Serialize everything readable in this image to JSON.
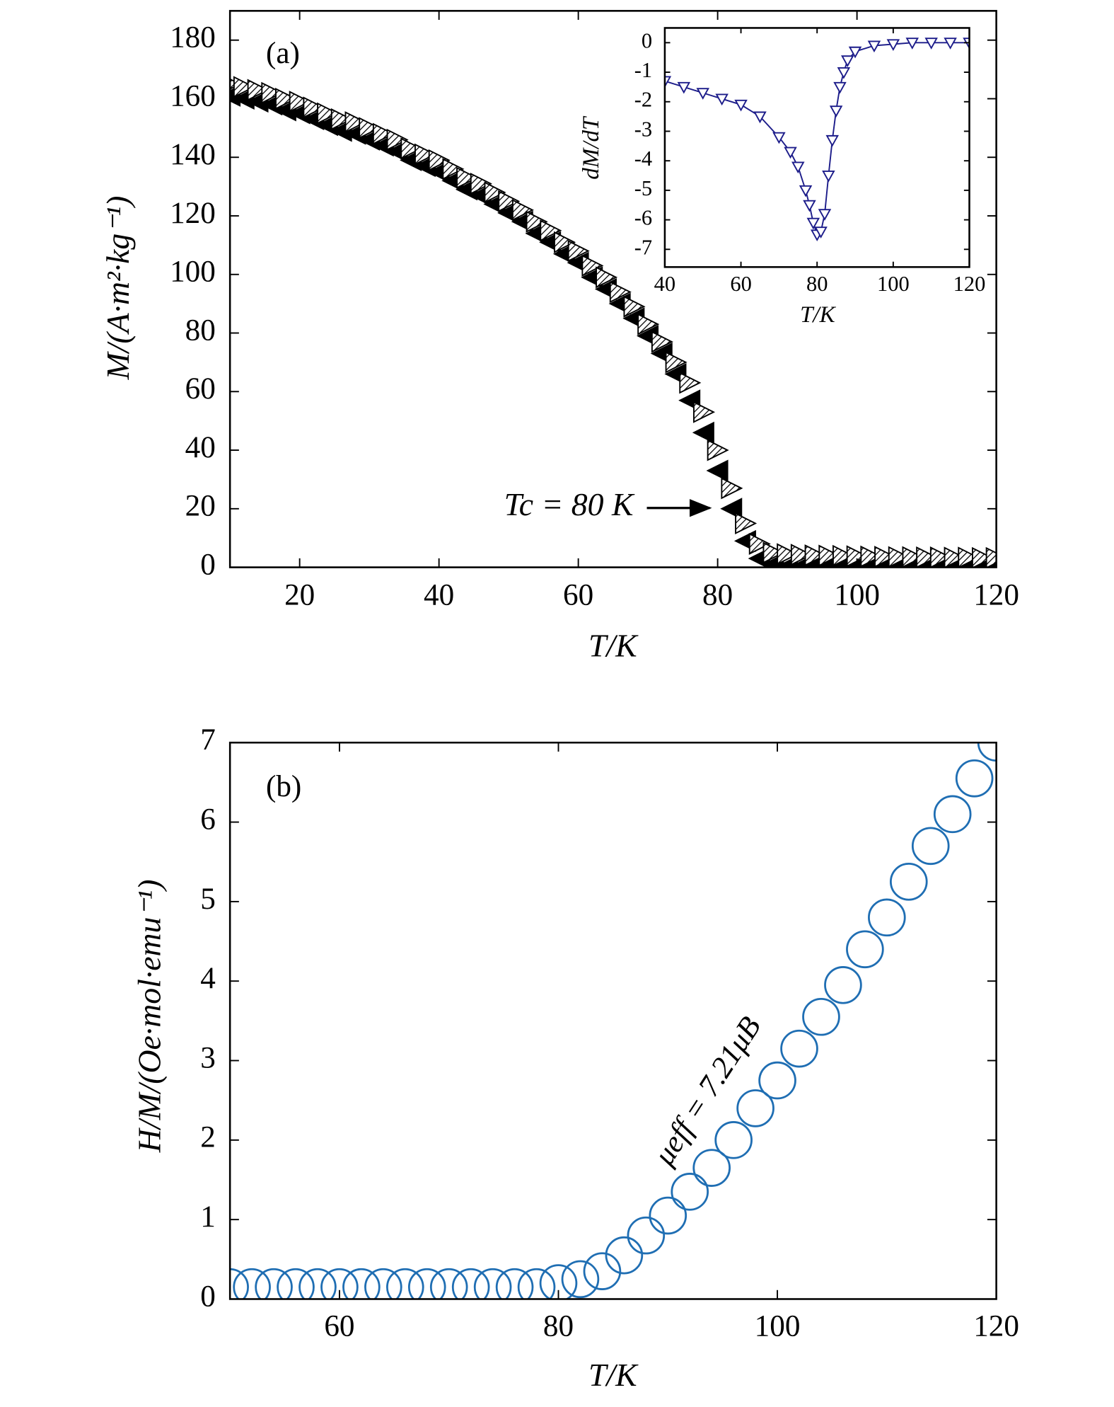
{
  "chart_data": [
    {
      "type": "scatter",
      "label": "(a)",
      "xlabel": "T/K",
      "ylabel": "M/(A·m²·kg⁻¹)",
      "annotation": "Tc = 80 K",
      "xlim": [
        10,
        120
      ],
      "xticks": [
        20,
        40,
        60,
        80,
        100,
        120
      ],
      "ylim": [
        0,
        190
      ],
      "yticks": [
        0,
        20,
        40,
        60,
        80,
        100,
        120,
        140,
        160,
        180
      ],
      "x": [
        10,
        12,
        14,
        16,
        18,
        20,
        22,
        24,
        26,
        28,
        30,
        32,
        34,
        36,
        38,
        40,
        42,
        44,
        46,
        48,
        50,
        52,
        54,
        56,
        58,
        60,
        62,
        64,
        66,
        68,
        70,
        72,
        74,
        76,
        78,
        80,
        82,
        84,
        86,
        88,
        90,
        92,
        94,
        96,
        98,
        100,
        102,
        104,
        106,
        108,
        110,
        112,
        114,
        116,
        118,
        120
      ],
      "series": [
        {
          "color": "#000000",
          "marker": "triangle-left",
          "values": [
            161,
            160,
            159,
            158,
            156,
            155,
            153,
            151,
            149,
            148,
            146,
            144,
            142,
            139,
            137,
            135,
            132,
            129,
            127,
            124,
            121,
            118,
            114,
            111,
            107,
            104,
            99,
            95,
            90,
            85,
            79,
            73,
            66,
            57,
            46,
            33,
            20,
            9,
            3,
            1,
            0.3,
            0.3,
            0.3,
            0.3,
            0.3,
            0.3,
            0.3,
            0.3,
            0.3,
            0.3,
            0.3,
            0.3,
            0.3,
            0.3,
            0.3,
            0.3
          ]
        },
        {
          "color": "#000000",
          "marker": "triangle-right-hatched",
          "values": [
            165,
            164,
            163,
            162,
            160,
            159,
            157,
            155,
            153,
            152,
            150,
            148,
            146,
            143,
            141,
            139,
            136,
            133,
            131,
            128,
            125,
            122,
            118,
            115,
            111,
            108,
            103,
            99,
            94,
            89,
            83,
            77,
            70,
            63,
            53,
            40,
            27,
            15,
            8,
            5,
            4.5,
            4.3,
            4.1,
            4,
            3.9,
            3.8,
            3.7,
            3.6,
            3.5,
            3.5,
            3.4,
            3.4,
            3.3,
            3.3,
            3.2,
            3.2
          ]
        }
      ]
    },
    {
      "type": "scatter",
      "xlabel": "T/K",
      "ylabel": "dM/dT",
      "xlim": [
        40,
        120
      ],
      "xticks": [
        40,
        60,
        80,
        100,
        120
      ],
      "ylim": [
        -7.6,
        0.5
      ],
      "yticks": [
        0,
        -1,
        -2,
        -3,
        -4,
        -5,
        -6,
        -7
      ],
      "x": [
        40,
        45,
        50,
        55,
        60,
        65,
        70,
        73,
        75,
        77,
        78,
        79,
        80,
        81,
        82,
        83,
        84,
        85,
        86,
        87,
        88,
        90,
        95,
        100,
        105,
        110,
        115,
        120
      ],
      "series": [
        {
          "color": "#1c1c8a",
          "marker": "triangle-down",
          "line": true,
          "values": [
            -1.3,
            -1.5,
            -1.7,
            -1.9,
            -2.1,
            -2.5,
            -3.2,
            -3.7,
            -4.2,
            -5.0,
            -5.5,
            -6.1,
            -6.5,
            -6.4,
            -5.8,
            -4.5,
            -3.3,
            -2.3,
            -1.5,
            -1.0,
            -0.6,
            -0.3,
            -0.1,
            -0.05,
            0,
            0,
            0,
            0
          ]
        }
      ]
    },
    {
      "type": "scatter",
      "label": "(b)",
      "xlabel": "T/K",
      "ylabel": "H/M/(Oe·mol·emu⁻¹)",
      "annotation": "μeff = 7.21μB",
      "xlim": [
        50,
        120
      ],
      "xticks": [
        60,
        80,
        100,
        120
      ],
      "ylim": [
        0,
        7
      ],
      "yticks": [
        0,
        1,
        2,
        3,
        4,
        5,
        6,
        7
      ],
      "x": [
        50,
        52,
        54,
        56,
        58,
        60,
        62,
        64,
        66,
        68,
        70,
        72,
        74,
        76,
        78,
        80,
        82,
        84,
        86,
        88,
        90,
        92,
        94,
        96,
        98,
        100,
        102,
        104,
        106,
        108,
        110,
        112,
        114,
        116,
        118,
        120
      ],
      "series": [
        {
          "color": "#1f6eb3",
          "marker": "circle",
          "values": [
            0.15,
            0.15,
            0.15,
            0.15,
            0.15,
            0.15,
            0.15,
            0.15,
            0.15,
            0.15,
            0.15,
            0.15,
            0.15,
            0.15,
            0.15,
            0.2,
            0.25,
            0.35,
            0.55,
            0.8,
            1.05,
            1.35,
            1.65,
            2.0,
            2.4,
            2.75,
            3.15,
            3.55,
            3.95,
            4.4,
            4.8,
            5.25,
            5.7,
            6.1,
            6.55,
            7.0
          ]
        }
      ]
    }
  ]
}
